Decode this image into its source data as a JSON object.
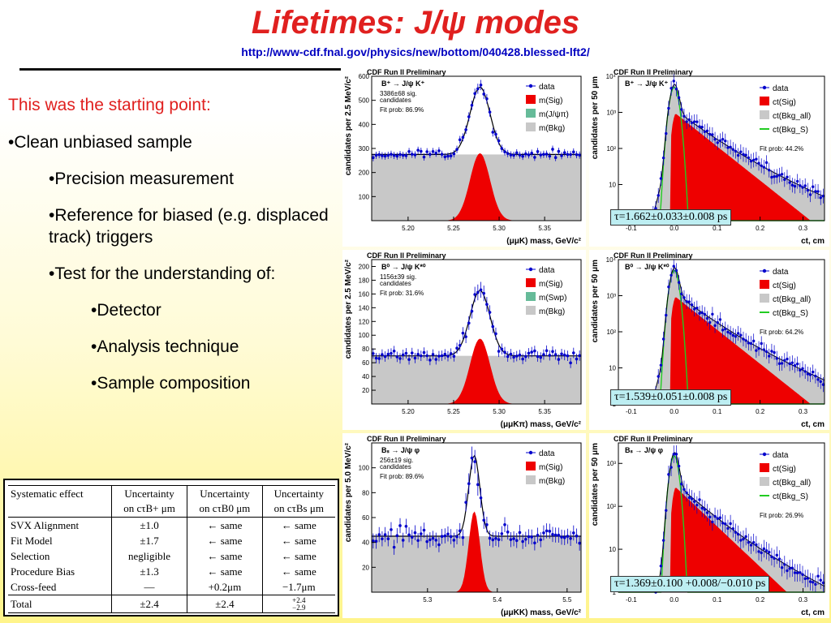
{
  "slide": {
    "title": "Lifetimes: J/ψ modes",
    "url": "http://www-cdf.fnal.gov/physics/new/bottom/040428.blessed-lft2/"
  },
  "bullets": {
    "heading": "This was the starting point:",
    "items": [
      {
        "text": "•Clean unbiased sample",
        "level": 1
      },
      {
        "text": "•Precision measurement",
        "level": 2
      },
      {
        "text": "•Reference for biased (e.g. displaced track) triggers",
        "level": 2
      },
      {
        "text": "•Test for the understanding of:",
        "level": 2
      },
      {
        "text": "•Detector",
        "level": 3
      },
      {
        "text": "•Analysis technique",
        "level": 3
      },
      {
        "text": "•Sample composition",
        "level": 3
      }
    ]
  },
  "systematics_table": {
    "headers": [
      "Systematic effect",
      "Uncertainty on cτ_B+ μm",
      "Uncertainty on cτ_B0 μm",
      "Uncertainty on cτ_Bs μm"
    ],
    "header_lines": [
      [
        "Systematic effect",
        ""
      ],
      [
        "Uncertainty",
        "on cτB+ μm"
      ],
      [
        "Uncertainty",
        "on cτB0 μm"
      ],
      [
        "Uncertainty",
        "on cτBs μm"
      ]
    ],
    "rows": [
      [
        "SVX Alignment",
        "±1.0",
        "← same",
        "← same"
      ],
      [
        "Fit Model",
        "±1.7",
        "← same",
        "← same"
      ],
      [
        "Selection",
        "negligible",
        "← same",
        "← same"
      ],
      [
        "Procedure Bias",
        "±1.3",
        "← same",
        "← same"
      ],
      [
        "Cross-feed",
        "—",
        "+0.2μm",
        "−1.7μm"
      ]
    ],
    "total": [
      "Total",
      "±2.4",
      "±2.4",
      "+2.4 / −2.9"
    ],
    "total_plus": "+2.4",
    "total_minus": "−2.9"
  },
  "colors": {
    "title": "#e0201f",
    "url": "#0000c0",
    "signal": "#ee0000",
    "background": "#c8c8c8",
    "reflection": "#66bb99",
    "data": "#0000cc",
    "bkgs": "#22cc22",
    "tau_box": "#bdeef2"
  },
  "chart_data": [
    {
      "id": "mass-bplus",
      "type": "scatter",
      "header": "CDF Run II Preliminary",
      "decay": "B⁺ → J/ψ K⁺",
      "yield_lines": [
        "3386±68 sig.",
        "candidates"
      ],
      "fit_prob": "Fit prob: 86.9%",
      "xlabel": "(μμK) mass, GeV/c²",
      "ylabel": "candidates per 2.5 MeV/c²",
      "xlim": [
        5.16,
        5.39
      ],
      "ylim": [
        0,
        600
      ],
      "xticks": [
        "5.20",
        "5.25",
        "5.30",
        "5.35"
      ],
      "yticks": [
        "100",
        "200",
        "300",
        "400",
        "500",
        "600"
      ],
      "legend": [
        "data",
        "m(Sig)",
        "m(J/ψπ)",
        "m(Bkg)"
      ],
      "bkg_level": 275,
      "sig_peak": 5.279,
      "sig_width": 0.011,
      "sig_amp": 280
    },
    {
      "id": "ct-bplus",
      "type": "line",
      "header": "CDF Run II Preliminary",
      "decay": "B⁺ → J/ψ K⁺",
      "fit_prob": "Fit prob: 44.2%",
      "xlabel": "ct, cm",
      "ylabel": "candidates per 50 μm",
      "log_y": true,
      "xlim": [
        -0.13,
        0.35
      ],
      "ylim": [
        1,
        10000
      ],
      "xticks": [
        "-0.1",
        "0.0",
        "0.1",
        "0.2",
        "0.3"
      ],
      "yticks": [
        "1",
        "10",
        "10²",
        "10³",
        "10⁴"
      ],
      "legend": [
        "data",
        "ct(Sig)",
        "ct(Bkg_all)",
        "ct(Bkg_S)"
      ],
      "tau": "τ=1.662±0.033±0.008 ps"
    },
    {
      "id": "mass-bzero",
      "type": "scatter",
      "header": "CDF Run II Preliminary",
      "decay": "B⁰ → J/ψ K*⁰",
      "yield_lines": [
        "1156±39 sig.",
        "candidates"
      ],
      "fit_prob": "Fit prob: 31.6%",
      "xlabel": "(μμKπ) mass, GeV/c²",
      "ylabel": "candidates per 2.5 MeV/c²",
      "xlim": [
        5.16,
        5.39
      ],
      "ylim": [
        0,
        210
      ],
      "xticks": [
        "5.20",
        "5.25",
        "5.30",
        "5.35"
      ],
      "yticks": [
        "20",
        "40",
        "60",
        "80",
        "100",
        "120",
        "140",
        "160",
        "180",
        "200"
      ],
      "legend": [
        "data",
        "m(Sig)",
        "m(Swp)",
        "m(Bkg)"
      ],
      "bkg_level": 70,
      "sig_peak": 5.279,
      "sig_width": 0.011,
      "sig_amp": 95
    },
    {
      "id": "ct-bzero",
      "type": "line",
      "header": "CDF Run II Preliminary",
      "decay": "B⁰ → J/ψ K*⁰",
      "fit_prob": "Fit prob: 64.2%",
      "xlabel": "ct, cm",
      "ylabel": "candidates per 50 μm",
      "log_y": true,
      "xlim": [
        -0.13,
        0.35
      ],
      "ylim": [
        1,
        10000
      ],
      "xticks": [
        "-0.1",
        "0.0",
        "0.1",
        "0.2",
        "0.3"
      ],
      "yticks": [
        "1",
        "10",
        "10²",
        "10³",
        "10⁴"
      ],
      "legend": [
        "data",
        "ct(Sig)",
        "ct(Bkg_all)",
        "ct(Bkg_S)"
      ],
      "tau": "τ=1.539±0.051±0.008 ps"
    },
    {
      "id": "mass-bs",
      "type": "scatter",
      "header": "CDF Run II Preliminary",
      "decay": "Bₛ → J/ψ φ",
      "yield_lines": [
        "256±19 sig.",
        "candidates"
      ],
      "fit_prob": "Fit prob: 89.6%",
      "xlabel": "(μμKK) mass, GeV/c²",
      "ylabel": "candidates per 5.0 MeV/c²",
      "xlim": [
        5.22,
        5.52
      ],
      "ylim": [
        0,
        120
      ],
      "xticks": [
        "5.3",
        "5.4",
        "5.5"
      ],
      "yticks": [
        "20",
        "40",
        "60",
        "80",
        "100"
      ],
      "legend": [
        "data",
        "m(Sig)",
        "m(Bkg)"
      ],
      "bkg_level": 45,
      "sig_peak": 5.367,
      "sig_width": 0.008,
      "sig_amp": 65
    },
    {
      "id": "ct-bs",
      "type": "line",
      "header": "CDF Run II Preliminary",
      "decay": "Bₛ → J/ψ φ",
      "fit_prob": "Fit prob: 26.9%",
      "xlabel": "ct, cm",
      "ylabel": "candidates per 50 μm",
      "log_y": true,
      "xlim": [
        -0.13,
        0.35
      ],
      "ylim": [
        1,
        3000
      ],
      "xticks": [
        "-0.1",
        "0.0",
        "0.1",
        "0.2",
        "0.3"
      ],
      "yticks": [
        "1",
        "10",
        "10²",
        "10³"
      ],
      "legend": [
        "data",
        "ct(Sig)",
        "ct(Bkg_all)",
        "ct(Bkg_S)"
      ],
      "tau": "τ=1.369±0.100 +0.008/−0.010 ps"
    }
  ]
}
